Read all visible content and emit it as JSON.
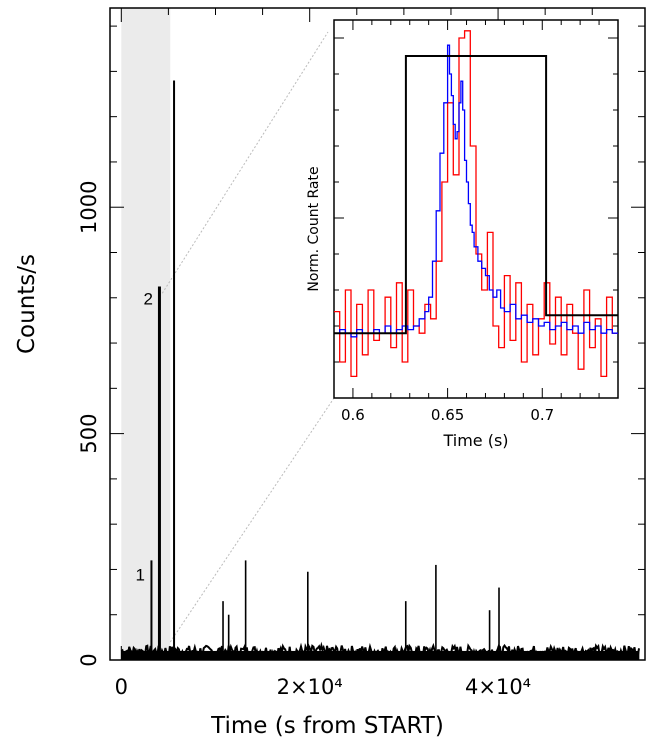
{
  "chart_data": [
    {
      "type": "line",
      "title": "",
      "xlabel": "Time (s from START)",
      "ylabel": "Counts/s",
      "xlim": [
        -1200,
        55600
      ],
      "ylim": [
        0,
        1440
      ],
      "xticks": [
        {
          "value": 0,
          "label": "0"
        },
        {
          "value": 20000,
          "label": "2×10⁴"
        },
        {
          "value": 40000,
          "label": "4×10⁴"
        }
      ],
      "yticks": [
        {
          "value": 0,
          "label": "0"
        },
        {
          "value": 500,
          "label": "500"
        },
        {
          "value": 1000,
          "label": "1000"
        }
      ],
      "highlight_region": {
        "x_start": 0,
        "x_end": 5200,
        "color": "#ebebeb"
      },
      "baseline": {
        "x_start": 0,
        "x_end": 55000,
        "counts_per_s": 20,
        "noise": 12
      },
      "burst_spikes": [
        {
          "x": 3200,
          "y": 220,
          "label": "1"
        },
        {
          "x": 4050,
          "y": 825,
          "label": "2"
        },
        {
          "x": 5600,
          "y": 1280,
          "label": ""
        }
      ],
      "spikes": [
        {
          "x": 10800,
          "y": 130
        },
        {
          "x": 11400,
          "y": 100
        },
        {
          "x": 13200,
          "y": 220
        },
        {
          "x": 19800,
          "y": 195
        },
        {
          "x": 30200,
          "y": 130
        },
        {
          "x": 33400,
          "y": 210
        },
        {
          "x": 39100,
          "y": 110
        },
        {
          "x": 40100,
          "y": 160
        }
      ],
      "annotations": [
        "1",
        "2"
      ],
      "grid": false
    },
    {
      "type": "line",
      "title": "",
      "xlabel": "Time (s)",
      "ylabel": "Norm. Count Rate",
      "xlim": [
        0.59,
        0.74
      ],
      "ylim": [
        0.0,
        1.05
      ],
      "xticks": [
        {
          "value": 0.6,
          "label": "0.6"
        },
        {
          "value": 0.65,
          "label": "0.65"
        },
        {
          "value": 0.7,
          "label": "0.7"
        }
      ],
      "series": [
        {
          "name": "",
          "color": "#000000",
          "step": true,
          "x": [
            0.59,
            0.628,
            0.628,
            0.702,
            0.702,
            0.74
          ],
          "y": [
            0.18,
            0.18,
            0.95,
            0.95,
            0.23,
            0.23
          ]
        },
        {
          "name": "",
          "color": "#0000ff",
          "step": true,
          "x": [
            0.59,
            0.593,
            0.596,
            0.599,
            0.602,
            0.605,
            0.608,
            0.611,
            0.614,
            0.617,
            0.62,
            0.623,
            0.626,
            0.629,
            0.632,
            0.635,
            0.638,
            0.64,
            0.642,
            0.644,
            0.646,
            0.648,
            0.65,
            0.651,
            0.652,
            0.653,
            0.654,
            0.655,
            0.656,
            0.657,
            0.658,
            0.659,
            0.66,
            0.661,
            0.662,
            0.663,
            0.664,
            0.666,
            0.668,
            0.67,
            0.672,
            0.674,
            0.676,
            0.678,
            0.68,
            0.683,
            0.686,
            0.689,
            0.692,
            0.695,
            0.698,
            0.701,
            0.704,
            0.707,
            0.71,
            0.713,
            0.716,
            0.719,
            0.722,
            0.725,
            0.728,
            0.731,
            0.734,
            0.737,
            0.74
          ],
          "y": [
            0.18,
            0.19,
            0.18,
            0.17,
            0.19,
            0.18,
            0.18,
            0.19,
            0.18,
            0.2,
            0.18,
            0.19,
            0.2,
            0.19,
            0.2,
            0.22,
            0.24,
            0.28,
            0.38,
            0.52,
            0.68,
            0.82,
            0.98,
            0.9,
            0.84,
            0.76,
            0.72,
            0.74,
            0.82,
            0.88,
            0.8,
            0.66,
            0.6,
            0.54,
            0.48,
            0.46,
            0.42,
            0.38,
            0.36,
            0.34,
            0.3,
            0.28,
            0.3,
            0.25,
            0.24,
            0.26,
            0.22,
            0.23,
            0.21,
            0.22,
            0.2,
            0.21,
            0.19,
            0.2,
            0.21,
            0.19,
            0.2,
            0.18,
            0.21,
            0.19,
            0.2,
            0.18,
            0.19,
            0.18,
            0.18
          ]
        },
        {
          "name": "",
          "color": "#ff0000",
          "step": true,
          "x": [
            0.59,
            0.593,
            0.596,
            0.599,
            0.602,
            0.605,
            0.608,
            0.611,
            0.614,
            0.617,
            0.62,
            0.623,
            0.626,
            0.629,
            0.632,
            0.635,
            0.638,
            0.641,
            0.644,
            0.647,
            0.65,
            0.653,
            0.656,
            0.659,
            0.662,
            0.665,
            0.668,
            0.671,
            0.674,
            0.677,
            0.68,
            0.683,
            0.686,
            0.689,
            0.692,
            0.695,
            0.698,
            0.701,
            0.704,
            0.707,
            0.71,
            0.713,
            0.716,
            0.719,
            0.722,
            0.725,
            0.728,
            0.731,
            0.734,
            0.737,
            0.74
          ],
          "y": [
            0.24,
            0.1,
            0.3,
            0.06,
            0.26,
            0.12,
            0.3,
            0.16,
            0.18,
            0.28,
            0.14,
            0.32,
            0.1,
            0.3,
            0.2,
            0.18,
            0.26,
            0.22,
            0.38,
            0.6,
            0.82,
            0.62,
            1.0,
            1.02,
            0.7,
            0.4,
            0.3,
            0.46,
            0.2,
            0.14,
            0.34,
            0.16,
            0.32,
            0.1,
            0.26,
            0.12,
            0.22,
            0.32,
            0.15,
            0.28,
            0.12,
            0.26,
            0.18,
            0.08,
            0.3,
            0.14,
            0.22,
            0.06,
            0.28,
            0.18,
            0.18
          ]
        }
      ],
      "grid": false
    }
  ],
  "colors": {
    "highlight": "#ebebeb",
    "zoom_lines": "#bbbbbb"
  }
}
